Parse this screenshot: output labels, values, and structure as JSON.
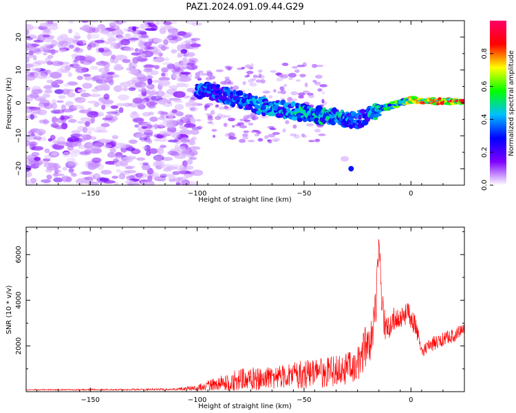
{
  "title": "PAZ1.2024.091.09.44.G29",
  "chart_data": [
    {
      "type": "heatmap",
      "xlabel": "Height of straight line (km)",
      "ylabel": "Frequency (Hz)",
      "xlim": [
        -180,
        25
      ],
      "ylim": [
        -25,
        25
      ],
      "xticks": [
        -150,
        -100,
        -50,
        0
      ],
      "yticks": [
        -20,
        -10,
        0,
        10,
        20
      ],
      "colorbar": {
        "label": "Normalized spectral amplitude",
        "range": [
          0,
          1
        ],
        "ticks": [
          0.0,
          0.2,
          0.4,
          0.6,
          0.8
        ],
        "colormap": [
          "#ffffff",
          "#7f00ff",
          "#0000ff",
          "#00bfff",
          "#00ff00",
          "#ffff00",
          "#ff0000",
          "#ff0066"
        ]
      },
      "ridge": {
        "x": [
          -100,
          -90,
          -80,
          -70,
          -60,
          -50,
          -40,
          -30,
          -25,
          -20,
          -15,
          -10,
          -5,
          0,
          10,
          20,
          25
        ],
        "frequency": [
          4,
          3,
          1,
          -1,
          -2,
          -3,
          -4,
          -5,
          -5,
          -4,
          -2,
          -1,
          0,
          1,
          0.5,
          0.5,
          0.5
        ],
        "amplitude": [
          0.35,
          0.35,
          0.35,
          0.4,
          0.4,
          0.45,
          0.45,
          0.4,
          0.35,
          0.4,
          0.45,
          0.5,
          0.6,
          0.7,
          0.8,
          0.9,
          0.9
        ]
      },
      "spot": {
        "x": -28,
        "frequency": -20,
        "amplitude": 0.3
      }
    },
    {
      "type": "line",
      "xlabel": "Height of straight line (km)",
      "ylabel": "SNR (10 * v/v)",
      "xlim": [
        -180,
        25
      ],
      "ylim": [
        0,
        7200
      ],
      "xticks": [
        -150,
        -100,
        -50,
        0
      ],
      "yticks": [
        2000,
        4000,
        6000
      ],
      "color": "#ff0000",
      "envelope": {
        "x": [
          -180,
          -110,
          -100,
          -90,
          -80,
          -70,
          -60,
          -50,
          -40,
          -30,
          -25,
          -22,
          -18,
          -16,
          -15,
          -12,
          -8,
          -5,
          0,
          3,
          5,
          10,
          20,
          25
        ],
        "y": [
          100,
          150,
          300,
          700,
          1000,
          1100,
          1200,
          1400,
          1500,
          1700,
          1900,
          2800,
          3200,
          5400,
          6900,
          3200,
          3700,
          3800,
          3900,
          3000,
          2000,
          2400,
          2800,
          3000
        ],
        "noise": [
          60,
          80,
          200,
          450,
          650,
          650,
          650,
          850,
          850,
          900,
          900,
          1200,
          1100,
          1500,
          1600,
          800,
          700,
          700,
          700,
          500,
          350,
          400,
          400,
          300
        ]
      }
    }
  ]
}
